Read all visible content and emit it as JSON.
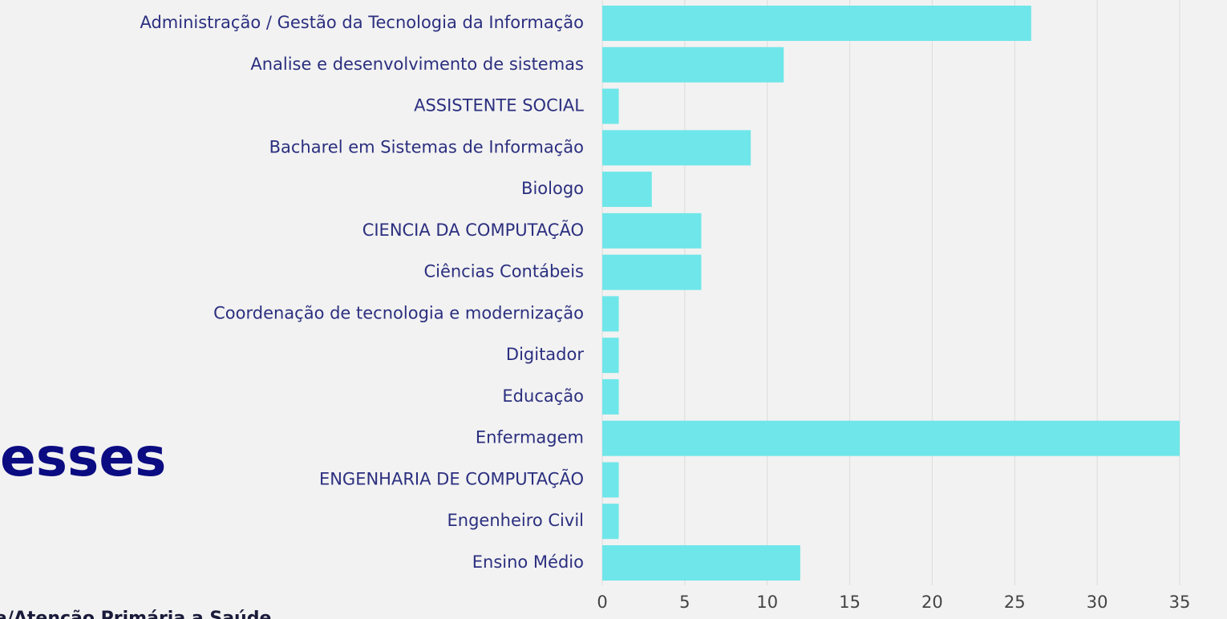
{
  "chart_data": {
    "type": "barh",
    "categories": [
      "Administração / Gestão da Tecnologia da Informação",
      "Analise e desenvolvimento de sistemas",
      "ASSISTENTE SOCIAL",
      "Bacharel em Sistemas de Informação",
      "Biologo",
      "CIENCIA DA COMPUTAÇÃO",
      "Ciências Contábeis",
      "Coordenação de tecnologia e modernização",
      "Digitador",
      "Educação",
      "Enfermagem",
      "ENGENHARIA DE COMPUTAÇÃO",
      "Engenheiro Civil",
      "Ensino Médio"
    ],
    "values": [
      26,
      11,
      1,
      9,
      3,
      6,
      6,
      1,
      1,
      1,
      35,
      1,
      1,
      12
    ],
    "color": "#6fe6e9",
    "xlim": [
      0,
      35
    ],
    "xticks": [
      0,
      5,
      10,
      15,
      20,
      25,
      30,
      35
    ],
    "grid": true,
    "annotations": [
      "esses",
      "a/Atenção Primária a Saúde"
    ]
  }
}
